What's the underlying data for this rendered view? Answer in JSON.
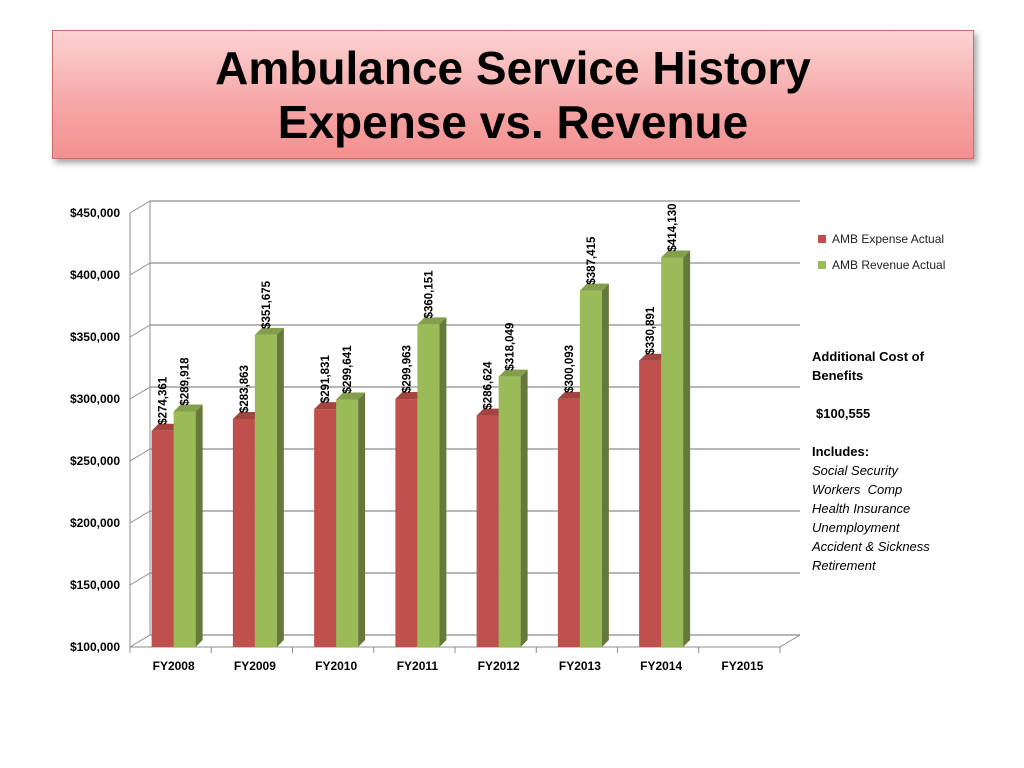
{
  "title": {
    "line1": "Ambulance Service History",
    "line2": "Expense vs. Revenue"
  },
  "chart_data": {
    "type": "bar",
    "categories": [
      "FY2008",
      "FY2009",
      "FY2010",
      "FY2011",
      "FY2012",
      "FY2013",
      "FY2014",
      "FY2015"
    ],
    "series": [
      {
        "name": "AMB Expense Actual",
        "color": "#c0504d",
        "values": [
          274361,
          283863,
          291831,
          299963,
          286624,
          300093,
          330891,
          null
        ],
        "labels": [
          "$274,361",
          "$283,863",
          "$291,831",
          "$299,963",
          "$286,624",
          "$300,093",
          "$330,891",
          ""
        ]
      },
      {
        "name": "AMB Revenue Actual",
        "color": "#9bbb59",
        "values": [
          289918,
          351675,
          299641,
          360151,
          318049,
          387415,
          414130,
          null
        ],
        "labels": [
          "$289,918",
          "$351,675",
          "$299,641",
          "$360,151",
          "$318,049",
          "$387,415",
          "$414,130",
          ""
        ]
      }
    ],
    "ylim": [
      100000,
      450000
    ],
    "yticks": [
      100000,
      150000,
      200000,
      250000,
      300000,
      350000,
      400000,
      450000
    ],
    "ytick_labels": [
      "$100,000",
      "$150,000",
      "$200,000",
      "$250,000",
      "$300,000",
      "$350,000",
      "$400,000",
      "$450,000"
    ],
    "grid": true,
    "legend": "right"
  },
  "notes": {
    "heading": "Additional Cost of Benefits",
    "amount": "$100,555",
    "includes_label": "Includes:",
    "items": [
      "Social Security",
      "Workers  Comp",
      "Health Insurance",
      "Unemployment",
      "Accident & Sickness",
      "Retirement"
    ]
  }
}
